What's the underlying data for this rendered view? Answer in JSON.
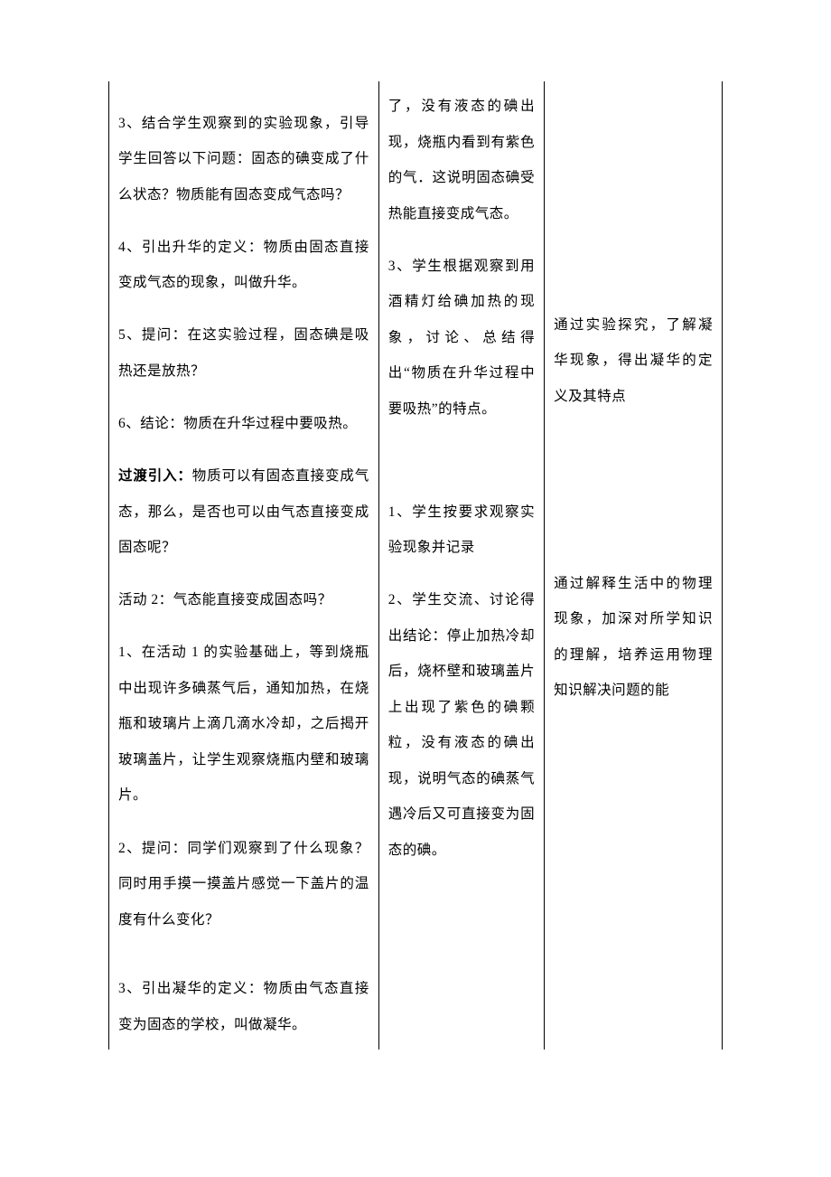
{
  "colors": {
    "border": "#000000",
    "text": "#000000",
    "background": "#ffffff"
  },
  "typography": {
    "font_family": "SimSun",
    "font_size_pt": 12,
    "line_height": 2.55
  },
  "table": {
    "column_widths_pct": [
      44,
      27,
      29
    ],
    "row": {
      "col1": {
        "p1": "3、结合学生观察到的实验现象，引导学生回答以下问题：固态的碘变成了什么状态？物质能有固态变成气态吗？",
        "p2": "4、引出升华的定义：物质由固态直接变成气态的现象，叫做升华。",
        "p3": "5、提问：在这实验过程，固态碘是吸热还是放热？",
        "p4": "6、结论：物质在升华过程中要吸热。",
        "p5a": "过渡引入：",
        "p5b": "物质可以有固态直接变成气态，那么，是否也可以由气态直接变成固态呢？",
        "p6": "活动 2：气态能直接变成固态吗？",
        "p7": "1、在活动 1 的实验基础上，等到烧瓶中出现许多碘蒸气后，通知加热，在烧瓶和玻璃片上滴几滴水冷却，之后揭开玻璃盖片，让学生观察烧瓶内壁和玻璃片。",
        "p8": "2、提问：同学们观察到了什么现象？同时用手摸一摸盖片感觉一下盖片的温度有什么变化？",
        "p9": "3、引出凝华的定义：物质由气态直接变为固态的学校，叫做凝华。"
      },
      "col2": {
        "p1": "了，没有液态的碘出现，烧瓶内看到有紫色的气．这说明固态碘受热能直接变成气态。",
        "p2": "3、学生根据观察到用酒精灯给碘加热的现象，讨论、总结得出“物质在升华过程中要吸热”的特点。",
        "p3": "1、学生按要求观察实验现象并记录",
        "p4": "2、学生交流、讨论得出结论：停止加热冷却后，烧杯壁和玻璃盖片上出现了紫色的碘颗粒，没有液态的碘出现，说明气态的碘蒸气遇冷后又可直接变为固态的碘。"
      },
      "col3": {
        "p1": "通过实验探究，了解凝华现象，得出凝华的定义及其特点",
        "p2": "通过解释生活中的物理现象，加深对所学知识的理解，培养运用物理知识解决问题的能"
      }
    }
  }
}
